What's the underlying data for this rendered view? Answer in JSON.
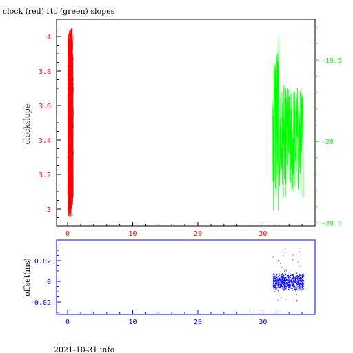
{
  "title": "clock (red) rtc (green) slopes",
  "footer": "2021-10-31 info",
  "colors": {
    "clock": "#ff0000",
    "rtc": "#00ff00",
    "offset": "#0000ff",
    "axis": "#000000"
  },
  "chart_data": [
    {
      "type": "line",
      "ylabel": "clockslope",
      "xlim": [
        -1.7,
        38
      ],
      "x_ticks": [
        "0",
        "10",
        "20",
        "30"
      ],
      "ylim_left": [
        2.9,
        4.1
      ],
      "y_ticks_left": [
        "3",
        "3.2",
        "3.4",
        "3.6",
        "3.8",
        "4"
      ],
      "ylim_right": [
        -20.52,
        -19.25
      ],
      "y_ticks_right": [
        "-19.5",
        "-20",
        "-20.5"
      ],
      "series": [
        {
          "name": "clock",
          "axis": "left",
          "x_range": [
            0,
            0.9
          ],
          "y_range": [
            2.95,
            4.05
          ]
        },
        {
          "name": "rtc",
          "axis": "right",
          "x_range": [
            31.5,
            36.2
          ],
          "y_range": [
            -20.5,
            -19.33
          ]
        }
      ]
    },
    {
      "type": "scatter",
      "ylabel": "offset(ms)",
      "xlim": [
        -1.7,
        38
      ],
      "x_ticks": [
        "0",
        "10",
        "20",
        "30"
      ],
      "ylim": [
        -0.032,
        0.04
      ],
      "y_ticks": [
        "0.02",
        "0",
        "-0.02"
      ],
      "series": [
        {
          "name": "offset",
          "x_range": [
            31.5,
            36.2
          ],
          "y_range": [
            -0.02,
            0.035
          ]
        }
      ]
    }
  ]
}
